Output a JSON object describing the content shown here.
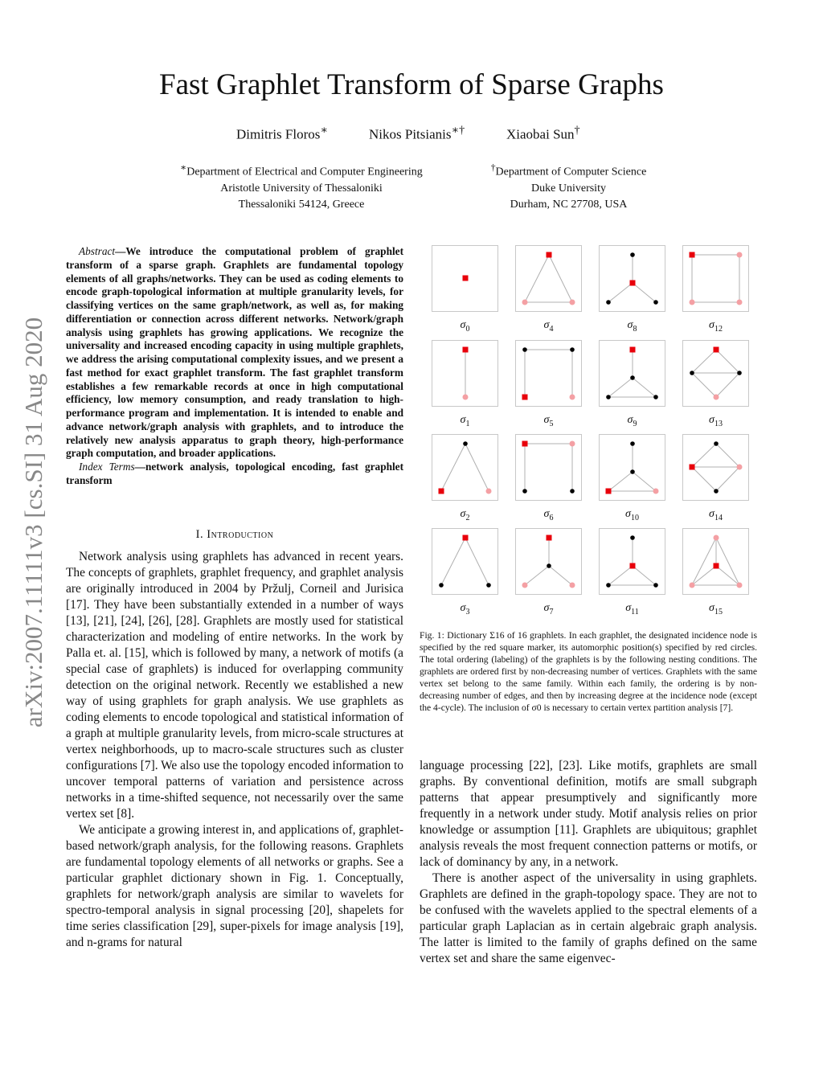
{
  "title": "Fast Graphlet Transform of Sparse Graphs",
  "authors": [
    {
      "name": "Dimitris Floros",
      "mark": "∗"
    },
    {
      "name": "Nikos Pitsianis",
      "mark": "∗†"
    },
    {
      "name": "Xiaobai Sun",
      "mark": "†"
    }
  ],
  "affiliations": [
    {
      "mark": "∗",
      "lines": [
        "Department of Electrical and Computer Engineering",
        "Aristotle University of Thessaloniki",
        "Thessaloniki 54124, Greece"
      ]
    },
    {
      "mark": "†",
      "lines": [
        "Department of Computer Science",
        "Duke University",
        "Durham, NC 27708, USA"
      ]
    }
  ],
  "arxiv_stamp": "arXiv:2007.11111v3  [cs.SI]  31 Aug 2020",
  "abstract": {
    "label": "Abstract",
    "text": "—We introduce the computational problem of graphlet transform of a sparse graph. Graphlets are fundamental topology elements of all graphs/networks. They can be used as coding elements to encode graph-topological information at multiple granularity levels, for classifying vertices on the same graph/network, as well as, for making differentiation or connection across different networks. Network/graph analysis using graphlets has growing applications. We recognize the universality and increased encoding capacity in using multiple graphlets, we address the arising computational complexity issues, and we present a fast method for exact graphlet transform. The fast graphlet transform establishes a few remarkable records at once in high computational efficiency, low memory consumption, and ready translation to high-performance program and implementation. It is intended to enable and advance network/graph analysis with graphlets, and to introduce the relatively new analysis apparatus to graph theory, high-performance graph computation, and broader applications.",
    "index_label": "Index Terms",
    "index_text": "—network analysis, topological encoding, fast graphlet transform"
  },
  "section": {
    "number": "I.",
    "title": "Introduction"
  },
  "left_paragraphs": [
    "Network analysis using graphlets has advanced in recent years. The concepts of graphlets, graphlet frequency, and graphlet analysis are originally introduced in 2004 by Pržulj, Corneil and Jurisica [17]. They have been substantially extended in a number of ways [13], [21], [24], [26], [28]. Graphlets are mostly used for statistical characterization and modeling of entire networks. In the work by Palla et. al. [15], which is followed by many, a network of motifs (a special case of graphlets) is induced for overlapping community detection on the original network. Recently we established a new way of using graphlets for graph analysis. We use graphlets as coding elements to encode topological and statistical information of a graph at multiple granularity levels, from micro-scale structures at vertex neighborhoods, up to macro-scale structures such as cluster configurations [7]. We also use the topology encoded information to uncover temporal patterns of variation and persistence across networks in a time-shifted sequence, not necessarily over the same vertex set [8].",
    "We anticipate a growing interest in, and applications of, graphlet-based network/graph analysis, for the following reasons. Graphlets are fundamental topology elements of all networks or graphs. See a particular graphlet dictionary shown in Fig. 1. Conceptually, graphlets for network/graph analysis are similar to wavelets for spectro-temporal analysis in signal processing [20], shapelets for time series classification [29], super-pixels for image analysis [19], and n-grams for natural"
  ],
  "right_paragraphs": [
    "language processing [22], [23]. Like motifs, graphlets are small graphs. By conventional definition, motifs are small subgraph patterns that appear presumptively and significantly more frequently in a network under study. Motif analysis relies on prior knowledge or assumption [11]. Graphlets are ubiquitous; graphlet analysis reveals the most frequent connection patterns or motifs, or lack of dominancy by any, in a network.",
    "There is another aspect of the universality in using graphlets. Graphlets are defined in the graph-topology space. They are not to be confused with the wavelets applied to the spectral elements of a particular graph Laplacian as in certain algebraic graph analysis. The latter is limited to the family of graphs defined on the same vertex set and share the same eigenvec-"
  ],
  "figure": {
    "caption": "Fig. 1: Dictionary Σ16 of 16 graphlets. In each graphlet, the designated incidence node is specified by the red square marker, its automorphic position(s) specified by red circles. The total ordering (labeling) of the graphlets is by the following nesting conditions. The graphlets are ordered first by non-decreasing number of vertices. Graphlets with the same vertex set belong to the same family. Within each family, the ordering is by non-decreasing number of edges, and then by increasing degree at the incidence node (except the 4-cycle). The inclusion of σ0 is necessary to certain vertex partition analysis [7].",
    "colors": {
      "incidence": "#e8000b",
      "automorphic": "#f4a0a4",
      "other": "#000000",
      "edge": "#b0b0b0",
      "frame": "#c8c8c8"
    },
    "graphlets": [
      {
        "label": "σ",
        "index": "0",
        "nodes": {
          "MID": "incidence"
        },
        "edges": []
      },
      {
        "label": "σ",
        "index": "1",
        "nodes": {
          "T": "incidence",
          "B": "automorphic"
        },
        "edges": [
          [
            "T",
            "B"
          ]
        ]
      },
      {
        "label": "σ",
        "index": "2",
        "nodes": {
          "T": "other",
          "BL": "incidence",
          "BR": "automorphic"
        },
        "edges": [
          [
            "T",
            "BL"
          ],
          [
            "T",
            "BR"
          ]
        ]
      },
      {
        "label": "σ",
        "index": "3",
        "nodes": {
          "T": "incidence",
          "BL": "other",
          "BR": "other"
        },
        "edges": [
          [
            "T",
            "BL"
          ],
          [
            "T",
            "BR"
          ]
        ]
      },
      {
        "label": "σ",
        "index": "4",
        "nodes": {
          "T": "incidence",
          "BL": "automorphic",
          "BR": "automorphic"
        },
        "edges": [
          [
            "T",
            "BL"
          ],
          [
            "T",
            "BR"
          ],
          [
            "BL",
            "BR"
          ]
        ]
      },
      {
        "label": "σ",
        "index": "5",
        "nodes": {
          "TL": "other",
          "TR": "other",
          "BL": "incidence",
          "BR": "automorphic"
        },
        "edges": [
          [
            "TL",
            "TR"
          ],
          [
            "TL",
            "BL"
          ],
          [
            "TR",
            "BR"
          ]
        ]
      },
      {
        "label": "σ",
        "index": "6",
        "nodes": {
          "TL": "incidence",
          "TR": "automorphic",
          "BL": "other",
          "BR": "other"
        },
        "edges": [
          [
            "TL",
            "TR"
          ],
          [
            "TL",
            "BL"
          ],
          [
            "TR",
            "BR"
          ]
        ]
      },
      {
        "label": "σ",
        "index": "7",
        "nodes": {
          "T": "incidence",
          "C": "other",
          "BL": "automorphic",
          "BR": "automorphic"
        },
        "edges": [
          [
            "T",
            "C"
          ],
          [
            "C",
            "BL"
          ],
          [
            "C",
            "BR"
          ]
        ]
      },
      {
        "label": "σ",
        "index": "8",
        "nodes": {
          "T": "other",
          "C": "incidence",
          "BL": "other",
          "BR": "other"
        },
        "edges": [
          [
            "T",
            "C"
          ],
          [
            "C",
            "BL"
          ],
          [
            "C",
            "BR"
          ]
        ]
      },
      {
        "label": "σ",
        "index": "9",
        "nodes": {
          "T": "incidence",
          "C": "other",
          "BL": "other",
          "BR": "other"
        },
        "edges": [
          [
            "T",
            "C"
          ],
          [
            "C",
            "BL"
          ],
          [
            "C",
            "BR"
          ],
          [
            "BL",
            "BR"
          ]
        ]
      },
      {
        "label": "σ",
        "index": "10",
        "nodes": {
          "T": "other",
          "C": "other",
          "BL": "incidence",
          "BR": "automorphic"
        },
        "edges": [
          [
            "T",
            "C"
          ],
          [
            "C",
            "BL"
          ],
          [
            "C",
            "BR"
          ],
          [
            "BL",
            "BR"
          ]
        ]
      },
      {
        "label": "σ",
        "index": "11",
        "nodes": {
          "T": "other",
          "C": "incidence",
          "BL": "other",
          "BR": "other"
        },
        "edges": [
          [
            "T",
            "C"
          ],
          [
            "C",
            "BL"
          ],
          [
            "C",
            "BR"
          ],
          [
            "BL",
            "BR"
          ]
        ]
      },
      {
        "label": "σ",
        "index": "12",
        "nodes": {
          "TL": "incidence",
          "TR": "automorphic",
          "BL": "automorphic",
          "BR": "automorphic"
        },
        "edges": [
          [
            "TL",
            "TR"
          ],
          [
            "TL",
            "BL"
          ],
          [
            "TR",
            "BR"
          ],
          [
            "BL",
            "BR"
          ]
        ]
      },
      {
        "label": "σ",
        "index": "13",
        "nodes": {
          "T": "incidence",
          "L": "other",
          "R": "other",
          "B": "automorphic"
        },
        "edges": [
          [
            "T",
            "L"
          ],
          [
            "T",
            "R"
          ],
          [
            "L",
            "R"
          ],
          [
            "L",
            "B"
          ],
          [
            "R",
            "B"
          ]
        ]
      },
      {
        "label": "σ",
        "index": "14",
        "nodes": {
          "T": "other",
          "L": "incidence",
          "R": "automorphic",
          "B": "other"
        },
        "edges": [
          [
            "T",
            "L"
          ],
          [
            "T",
            "R"
          ],
          [
            "L",
            "R"
          ],
          [
            "L",
            "B"
          ],
          [
            "R",
            "B"
          ]
        ]
      },
      {
        "label": "σ",
        "index": "15",
        "nodes": {
          "T": "automorphic",
          "C": "incidence",
          "BL": "automorphic",
          "BR": "automorphic"
        },
        "edges": [
          [
            "T",
            "C"
          ],
          [
            "T",
            "BL"
          ],
          [
            "T",
            "BR"
          ],
          [
            "C",
            "BL"
          ],
          [
            "C",
            "BR"
          ],
          [
            "BL",
            "BR"
          ]
        ]
      }
    ]
  }
}
